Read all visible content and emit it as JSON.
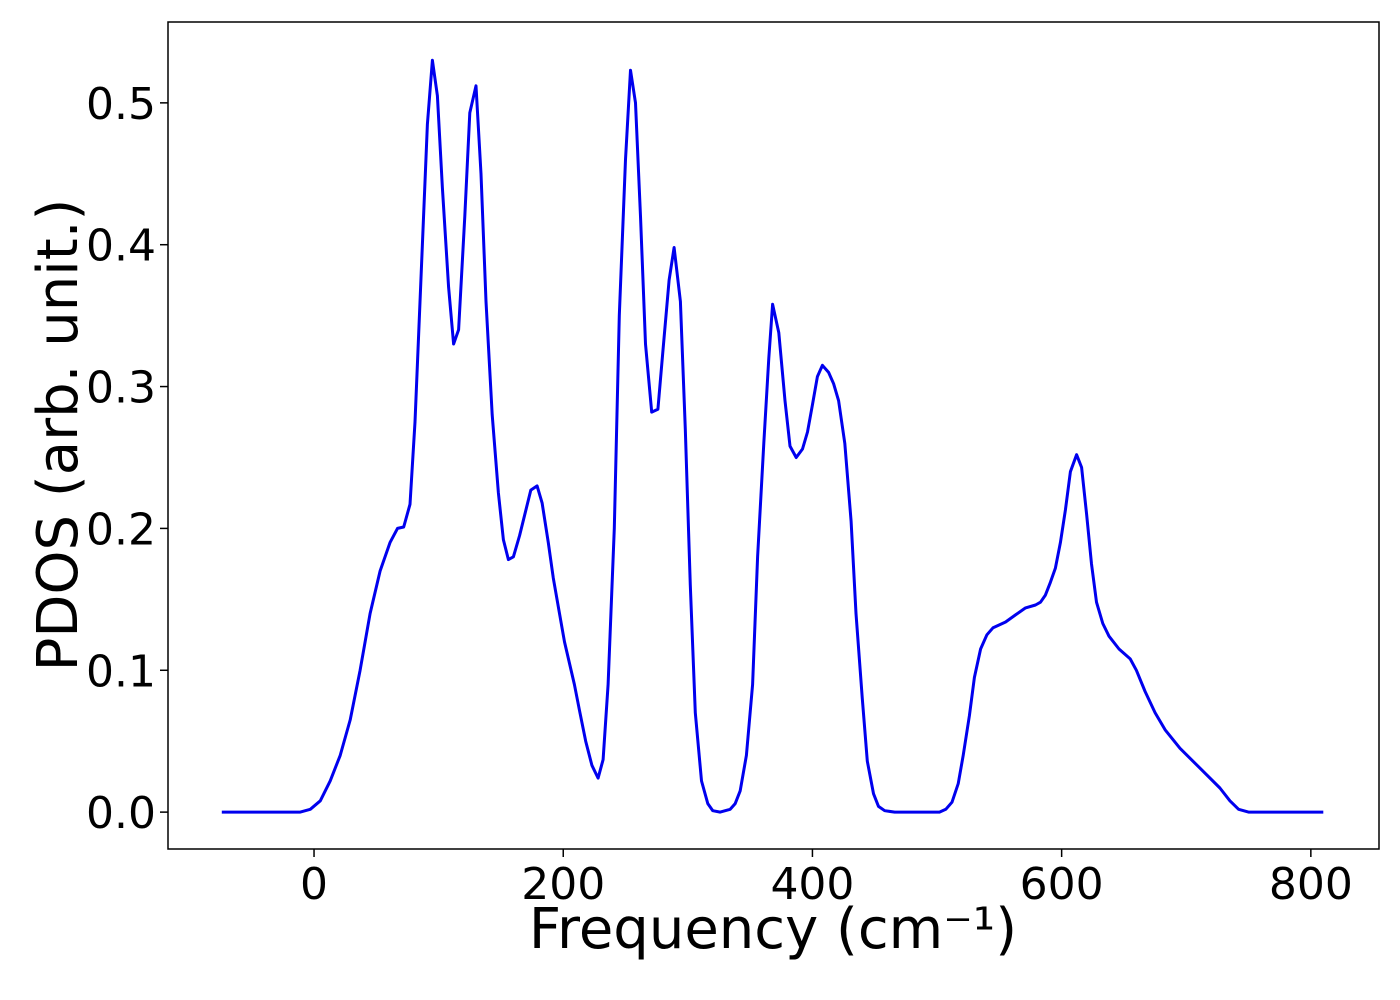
{
  "chart_data": {
    "type": "line",
    "xlabel": "Frequency (cm⁻¹)",
    "ylabel": "PDOS (arb. unit.)",
    "xlim": [
      -117.2,
      854.7
    ],
    "ylim": [
      -0.026,
      0.557
    ],
    "xticks": [
      0,
      200,
      400,
      600,
      800
    ],
    "yticks": [
      {
        "value": 0,
        "label": "0.0"
      },
      0.1,
      0.2,
      0.3,
      0.4,
      0.5
    ],
    "x": [
      -74,
      -11,
      -3,
      5,
      13,
      21,
      29,
      37,
      45,
      53,
      61,
      67,
      72,
      77,
      81,
      86,
      91,
      95,
      99,
      103,
      108,
      112,
      116,
      121,
      125,
      130,
      134,
      138,
      143,
      148,
      152,
      156,
      160,
      165,
      170,
      174,
      179,
      183,
      188,
      192,
      197,
      201,
      209,
      213,
      218,
      223,
      228,
      232,
      236,
      241,
      245,
      250,
      254,
      258,
      262,
      266,
      271,
      276,
      280,
      285,
      289,
      294,
      298,
      302,
      306,
      311,
      316,
      320,
      326,
      334,
      338,
      342,
      347,
      352,
      356,
      361,
      365,
      368,
      373,
      378,
      382,
      387,
      392,
      396,
      400,
      404,
      408,
      413,
      417,
      421,
      426,
      431,
      435,
      440,
      444,
      449,
      453,
      458,
      466,
      502,
      507,
      512,
      517,
      521,
      526,
      530,
      535,
      540,
      545,
      555,
      563,
      571,
      579,
      583,
      587,
      591,
      595,
      599,
      603,
      607,
      612,
      616,
      620,
      624,
      628,
      633,
      638,
      646,
      655,
      660,
      667,
      675,
      683,
      695,
      711,
      727,
      735,
      742,
      750,
      810
    ],
    "series": [
      {
        "color": "#0000ee",
        "values": [
          0,
          0,
          0.002,
          0.008,
          0.022,
          0.04,
          0.065,
          0.1,
          0.14,
          0.17,
          0.19,
          0.2,
          0.201,
          0.217,
          0.275,
          0.38,
          0.485,
          0.53,
          0.505,
          0.44,
          0.37,
          0.33,
          0.34,
          0.42,
          0.493,
          0.512,
          0.45,
          0.36,
          0.28,
          0.225,
          0.192,
          0.178,
          0.18,
          0.195,
          0.213,
          0.227,
          0.23,
          0.218,
          0.19,
          0.165,
          0.14,
          0.12,
          0.09,
          0.072,
          0.05,
          0.033,
          0.024,
          0.037,
          0.09,
          0.2,
          0.35,
          0.46,
          0.523,
          0.5,
          0.42,
          0.33,
          0.282,
          0.284,
          0.325,
          0.375,
          0.398,
          0.36,
          0.27,
          0.16,
          0.07,
          0.022,
          0.006,
          0.001,
          0,
          0.002,
          0.006,
          0.015,
          0.04,
          0.09,
          0.18,
          0.26,
          0.32,
          0.358,
          0.338,
          0.29,
          0.258,
          0.25,
          0.256,
          0.268,
          0.287,
          0.307,
          0.315,
          0.31,
          0.302,
          0.29,
          0.26,
          0.205,
          0.14,
          0.08,
          0.036,
          0.013,
          0.004,
          0.001,
          0,
          0,
          0.002,
          0.007,
          0.02,
          0.04,
          0.068,
          0.095,
          0.115,
          0.125,
          0.13,
          0.134,
          0.139,
          0.144,
          0.146,
          0.148,
          0.153,
          0.162,
          0.172,
          0.19,
          0.213,
          0.24,
          0.252,
          0.243,
          0.21,
          0.175,
          0.148,
          0.133,
          0.124,
          0.115,
          0.108,
          0.1,
          0.085,
          0.07,
          0.058,
          0.045,
          0.031,
          0.017,
          0.008,
          0.002,
          0,
          0
        ]
      }
    ]
  }
}
